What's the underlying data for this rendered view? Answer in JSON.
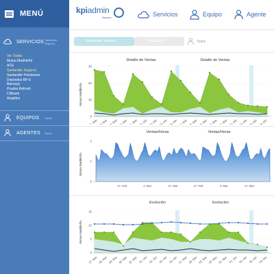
{
  "sidebar": {
    "menu_label": "MENÚ",
    "servicios": {
      "label": "SERVICIOS",
      "sub": "Santander Seguros"
    },
    "service_items": [
      "Ver Todos",
      "Mutua Madrileña",
      "ACE",
      "Santander Seguros",
      "Santander Préstamos",
      "Depósitos BP-6",
      "Barclays",
      "Prueba Refresh",
      "Citibank",
      "Amplifon"
    ],
    "active_item": "Santander Seguros",
    "equipos": {
      "label": "EQUIPOS",
      "sub": "Todos"
    },
    "agentes": {
      "label": "AGENTES",
      "sub": "Todos"
    }
  },
  "topbar": {
    "logo_kpi": "kpi",
    "logo_admin": "admin",
    "logo_sub": "Reporter",
    "nav": [
      {
        "label": "Servicios",
        "icon": "cloud-icon"
      },
      {
        "label": "Equipo",
        "icon": "user-plus-icon"
      },
      {
        "label": "Agente",
        "icon": "user-icon"
      }
    ]
  },
  "filters": {
    "chip1": "Santander Seguros",
    "chip2": "Vinculación",
    "todos": "Todos"
  },
  "colors": {
    "sidebar": "#4a7cba",
    "sidebar_header": "#2f5e9f",
    "green": "#8cc63f",
    "blue": "#3b7fd1",
    "highlight": "#d8eef8"
  },
  "charts": {
    "ventas": {
      "title_left": "Detalle de Ventas",
      "title_right": "Detalle de Ventas",
      "ylabel": "Mutua Madrileña",
      "yticks": [
        "0",
        "10",
        "20",
        "30"
      ],
      "xticks": [
        "27. Mar",
        "28. Mar",
        "29. Mar",
        "30. Mar",
        "31. Mar",
        "01. Abr",
        "02. Abr",
        "03. Abr",
        "04. Abr",
        "27. Mar",
        "28. Mar",
        "29. Mar",
        "30. Mar",
        "31. Mar",
        "01. Abr",
        "02. Abr",
        "03. Abr",
        "04. Abr"
      ]
    },
    "horas": {
      "title_left": "Ventas/Horas",
      "title_right": "Ventas/Horas",
      "ylabel": "Mutua Madrileña",
      "yticks": [
        "0",
        "1",
        "2"
      ],
      "xticks": [
        "17. Feb",
        "3. Mar",
        "17. Mar",
        "17. Feb",
        "3. Mar",
        "17. Mar"
      ]
    },
    "evolucion": {
      "title_left": "Evolución",
      "title_right": "Evolución",
      "ylabel": "Mutua Madrileña",
      "yticks": [
        "0",
        "5",
        "10",
        "15"
      ],
      "xticks": [
        "27. Mar",
        "28. Mar",
        "29. Mar",
        "30. Mar",
        "31. Mar",
        "01. Abr",
        "02. Abr",
        "03. Abr",
        "04. Abr",
        "27. Mar",
        "28. Mar",
        "29. Mar",
        "30. Mar",
        "31. Mar",
        "01. Abr",
        "02. Abr",
        "03. Abr",
        "04. Abr"
      ]
    }
  }
}
